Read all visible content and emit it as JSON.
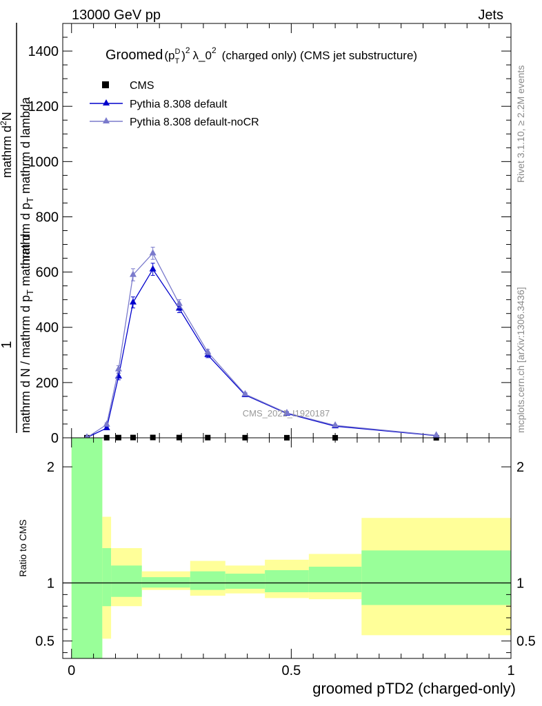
{
  "header": {
    "left": "13000 GeV pp",
    "right": "Jets"
  },
  "side_texts": {
    "rivet": "Rivet 3.1.10, ≥ 2.2M events",
    "mcplots": "mcplots.cern.ch [arXiv:1306.3436]"
  },
  "watermark": "CMS_2021_I1920187",
  "chart_data": [
    {
      "type": "line",
      "title": "Groomed (p_T^D)^2 λ_0^2  (charged only) (CMS jet substructure)",
      "title_prefix": "Groomed",
      "title_p": "(p",
      "title_sup_d": "D",
      "title_sub_t": "T",
      "title_close": ")",
      "title_sup2": "2",
      "title_lambda": "λ_0",
      "title_suffix": "(charged only) (CMS jet substructure)",
      "ylabel_top": "1",
      "ylabel_mid": "mathrm d N / mathrm d p",
      "ylabel_mid_sub": "T",
      "ylabel_mid_tail": " mathrm d",
      "ylabel_bottom": "mathrm d",
      "ylabel_bottom_sup": "2",
      "ylabel_bottom_tail": "N",
      "ylabel_den": "mathrm d p",
      "ylabel_den_sub": "T",
      "ylabel_den_tail": " mathrm d lambda",
      "xlim": [
        -0.02,
        1.0
      ],
      "ylim": [
        0,
        1500
      ],
      "yticks": [
        0,
        200,
        400,
        600,
        800,
        1000,
        1200,
        1400
      ],
      "ytick_labels": [
        "0",
        "200",
        "400",
        "600",
        "800",
        "1000",
        "1200",
        "1400"
      ],
      "legend_position": "top-left",
      "series": [
        {
          "name": "CMS",
          "color": "#000000",
          "marker": "square",
          "x": [
            0.035,
            0.08,
            0.107,
            0.14,
            0.185,
            0.245,
            0.31,
            0.395,
            0.49,
            0.6,
            0.83
          ],
          "y": [
            0.3,
            0.5,
            0.8,
            1.0,
            1.2,
            0.9,
            0.7,
            0.5,
            0.3,
            0.15,
            0.05
          ]
        },
        {
          "name": "Pythia 8.308 default",
          "color": "#0000cc",
          "marker": "triangle",
          "x": [
            0.035,
            0.08,
            0.107,
            0.14,
            0.185,
            0.245,
            0.31,
            0.395,
            0.49,
            0.6,
            0.83
          ],
          "y": [
            1,
            35,
            222,
            490,
            610,
            468,
            300,
            155,
            88,
            42,
            8
          ],
          "yerr": [
            1,
            5,
            12,
            20,
            22,
            15,
            10,
            6,
            5,
            3,
            1
          ]
        },
        {
          "name": "Pythia 8.308 default-noCR",
          "color": "#7a7acc",
          "marker": "triangle",
          "x": [
            0.035,
            0.08,
            0.107,
            0.14,
            0.185,
            0.245,
            0.31,
            0.395,
            0.49,
            0.6,
            0.83
          ],
          "y": [
            1,
            48,
            248,
            590,
            668,
            485,
            310,
            158,
            90,
            45,
            9
          ],
          "yerr": [
            1,
            6,
            13,
            22,
            22,
            15,
            10,
            6,
            5,
            3,
            1
          ]
        }
      ]
    },
    {
      "type": "area",
      "ylabel": "Ratio to CMS",
      "xlabel": "groomed pTD2 (charged-only)",
      "xlim": [
        -0.02,
        1.0
      ],
      "ylim": [
        0.35,
        2.25
      ],
      "yticks": [
        0.5,
        1,
        2
      ],
      "ytick_labels": [
        "0.5",
        "1",
        "2"
      ],
      "xticks": [
        0,
        0.5,
        1
      ],
      "xtick_labels": [
        "0",
        "0.5",
        "1"
      ],
      "bands": [
        {
          "x0": 0.0,
          "x1": 0.07,
          "y_lo": 0.35,
          "y_hi": 2.25,
          "g_lo": 0.35,
          "g_hi": 2.25
        },
        {
          "x0": 0.07,
          "x1": 0.09,
          "y_lo": 0.52,
          "y_hi": 1.57,
          "g_lo": 0.8,
          "g_hi": 1.3
        },
        {
          "x0": 0.09,
          "x1": 0.16,
          "y_lo": 0.8,
          "y_hi": 1.3,
          "g_lo": 0.88,
          "g_hi": 1.15
        },
        {
          "x0": 0.16,
          "x1": 0.27,
          "y_lo": 0.94,
          "y_hi": 1.1,
          "g_lo": 0.96,
          "g_hi": 1.05
        },
        {
          "x0": 0.27,
          "x1": 0.35,
          "y_lo": 0.89,
          "y_hi": 1.19,
          "g_lo": 0.94,
          "g_hi": 1.1
        },
        {
          "x0": 0.35,
          "x1": 0.44,
          "y_lo": 0.91,
          "y_hi": 1.15,
          "g_lo": 0.95,
          "g_hi": 1.08
        },
        {
          "x0": 0.44,
          "x1": 0.54,
          "y_lo": 0.87,
          "y_hi": 1.2,
          "g_lo": 0.92,
          "g_hi": 1.11
        },
        {
          "x0": 0.54,
          "x1": 0.66,
          "y_lo": 0.86,
          "y_hi": 1.25,
          "g_lo": 0.92,
          "g_hi": 1.14
        },
        {
          "x0": 0.66,
          "x1": 1.0,
          "y_lo": 0.55,
          "y_hi": 1.56,
          "g_lo": 0.81,
          "g_hi": 1.28
        }
      ],
      "band_colors": {
        "outer": "#ffff99",
        "inner": "#99ff99"
      },
      "reference": 1
    }
  ]
}
